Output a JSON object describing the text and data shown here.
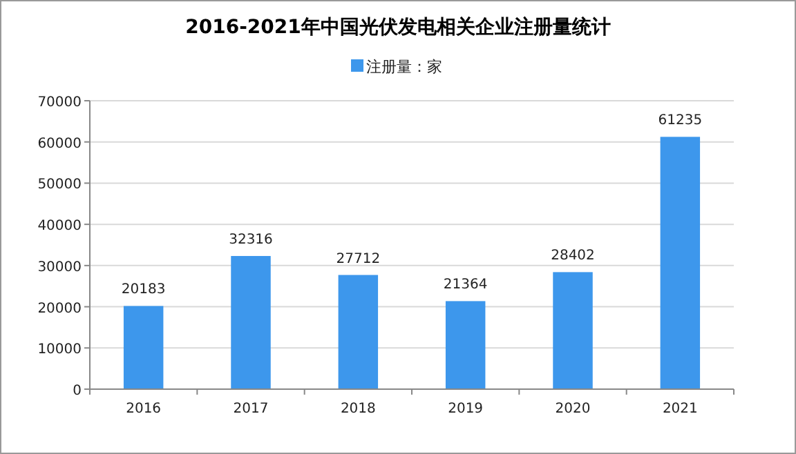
{
  "chart_data": {
    "type": "bar",
    "title": "2016-2021年中国光伏发电相关企业注册量统计",
    "categories": [
      "2016",
      "2017",
      "2018",
      "2019",
      "2020",
      "2021"
    ],
    "series": [
      {
        "name": "注册量：家",
        "color": "#3d97ec",
        "values": [
          20183,
          32316,
          27712,
          21364,
          28402,
          61235
        ]
      }
    ],
    "ylim": [
      0,
      70000
    ],
    "yticks": [
      0,
      10000,
      20000,
      30000,
      40000,
      50000,
      60000,
      70000
    ],
    "grid": "y",
    "legend": "top",
    "data_labels": true
  }
}
